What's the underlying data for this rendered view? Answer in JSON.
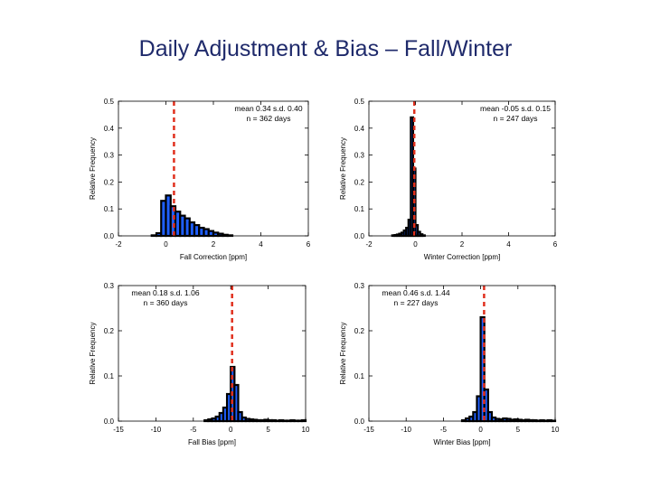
{
  "title": "Daily Adjustment & Bias – Fall/Winter",
  "colors": {
    "fill": "#1f5fff",
    "outline": "#000000",
    "mean_line": "#e0301e"
  },
  "chart_data": [
    {
      "type": "histogram",
      "xlabel": "Fall Correction [ppm]",
      "ylabel": "Relative Frequency",
      "xlim": [
        -2,
        6
      ],
      "ylim": [
        0,
        0.5
      ],
      "xticks": [
        -2,
        0,
        2,
        4,
        6
      ],
      "yticks": [
        "0.0",
        "0.1",
        "0.2",
        "0.3",
        "0.4",
        "0.5"
      ],
      "stats_line1": "mean 0.34  s.d. 0.40",
      "stats_line2": "n = 362 days",
      "mean": 0.34,
      "bin_width": 0.2,
      "bins_start": -0.6,
      "values": [
        0.002,
        0.01,
        0.13,
        0.15,
        0.11,
        0.09,
        0.075,
        0.065,
        0.05,
        0.04,
        0.03,
        0.025,
        0.018,
        0.012,
        0.008,
        0.004,
        0.002
      ]
    },
    {
      "type": "histogram",
      "xlabel": "Winter Correction [ppm]",
      "ylabel": "Relative Frequency",
      "xlim": [
        -2,
        6
      ],
      "ylim": [
        0,
        0.5
      ],
      "xticks": [
        -2,
        0,
        2,
        4,
        6
      ],
      "yticks": [
        "0.0",
        "0.1",
        "0.2",
        "0.3",
        "0.4",
        "0.5"
      ],
      "stats_line1": "mean -0.05  s.d. 0.15",
      "stats_line2": "n = 247 days",
      "mean": -0.05,
      "bin_width": 0.1,
      "bins_start": -1.0,
      "values": [
        0.002,
        0.003,
        0.005,
        0.008,
        0.012,
        0.02,
        0.03,
        0.06,
        0.44,
        0.25,
        0.04,
        0.015,
        0.006,
        0.002
      ]
    },
    {
      "type": "histogram",
      "xlabel": "Fall Bias [ppm]",
      "ylabel": "Relative Frequency",
      "xlim": [
        -15,
        10
      ],
      "ylim": [
        0,
        0.3
      ],
      "xticks": [
        -15,
        -10,
        -5,
        0,
        5,
        10
      ],
      "yticks": [
        "0.0",
        "0.1",
        "0.2",
        "0.3"
      ],
      "stats_line1": "mean 0.18  s.d. 1.06",
      "stats_line2": "n = 360 days",
      "mean": 0.18,
      "bin_width": 0.5,
      "bins_start": -3.5,
      "values": [
        0.002,
        0.004,
        0.006,
        0.01,
        0.018,
        0.03,
        0.06,
        0.12,
        0.08,
        0.02,
        0.008,
        0.005,
        0.004,
        0.003,
        0.002,
        0.002,
        0.003,
        0.002,
        0.002,
        0.001,
        0.002,
        0.001,
        0.001,
        0.002,
        0.001,
        0.001,
        0.002
      ]
    },
    {
      "type": "histogram",
      "xlabel": "Winter Bias [ppm]",
      "ylabel": "Relative Frequency",
      "xlim": [
        -15,
        10
      ],
      "ylim": [
        0,
        0.3
      ],
      "xticks": [
        -15,
        -10,
        -5,
        0,
        5,
        10
      ],
      "yticks": [
        "0.0",
        "0.1",
        "0.2",
        "0.3"
      ],
      "stats_line1": "mean 0.46  s.d. 1.44",
      "stats_line2": "n = 227 days",
      "mean": 0.46,
      "bin_width": 0.5,
      "bins_start": -2.5,
      "values": [
        0.002,
        0.006,
        0.01,
        0.02,
        0.055,
        0.23,
        0.07,
        0.02,
        0.008,
        0.005,
        0.004,
        0.006,
        0.005,
        0.003,
        0.004,
        0.003,
        0.002,
        0.003,
        0.002,
        0.002,
        0.001,
        0.002,
        0.001,
        0.002,
        0.001
      ]
    }
  ]
}
